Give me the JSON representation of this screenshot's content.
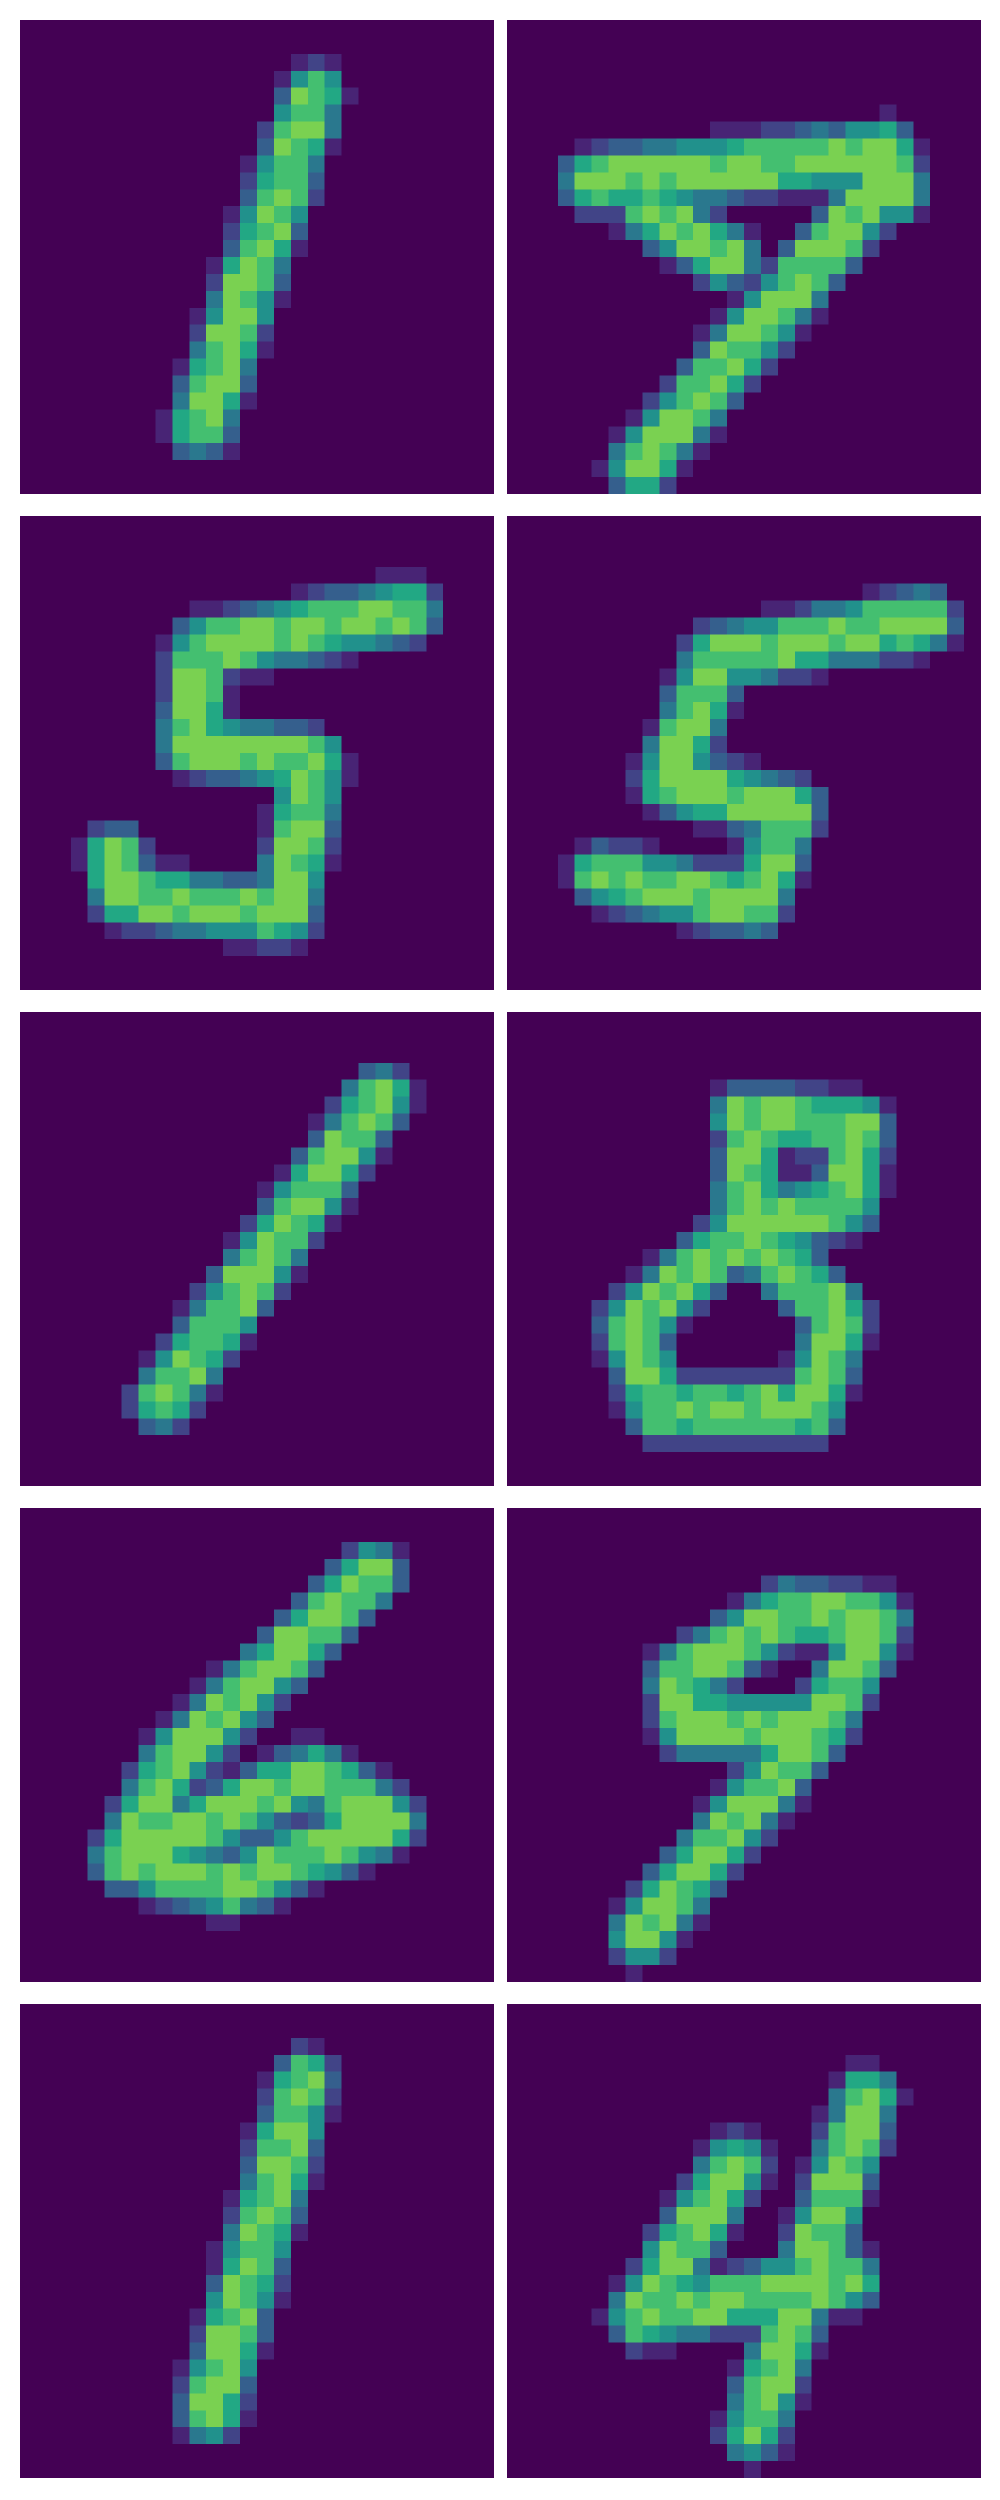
{
  "figure": {
    "background_color": "#440154",
    "colormap": [
      "#440154",
      "#482475",
      "#414487",
      "#355f8d",
      "#2a788e",
      "#21918c",
      "#22a884",
      "#44bf70",
      "#7ad151"
    ],
    "tiles": [
      {
        "row": 0,
        "col": 0,
        "digit_shape": "1",
        "strokes": [
          [
            0.62,
            0.16,
            0.38,
            0.86
          ]
        ]
      },
      {
        "row": 0,
        "col": 1,
        "digit_shape": "7",
        "strokes": [
          [
            0.18,
            0.34,
            0.8,
            0.28
          ],
          [
            0.8,
            0.28,
            0.82,
            0.36
          ],
          [
            0.78,
            0.36,
            0.28,
            0.94
          ],
          [
            0.3,
            0.4,
            0.46,
            0.5
          ]
        ]
      },
      {
        "row": 1,
        "col": 0,
        "digit_shape": "5",
        "strokes": [
          [
            0.38,
            0.28,
            0.82,
            0.2
          ],
          [
            0.38,
            0.28,
            0.36,
            0.48
          ],
          [
            0.36,
            0.48,
            0.62,
            0.52
          ],
          [
            0.62,
            0.52,
            0.56,
            0.84
          ],
          [
            0.56,
            0.84,
            0.22,
            0.8
          ],
          [
            0.22,
            0.8,
            0.2,
            0.72
          ]
        ]
      },
      {
        "row": 1,
        "col": 1,
        "digit_shape": "5",
        "strokes": [
          [
            0.44,
            0.3,
            0.88,
            0.22
          ],
          [
            0.44,
            0.3,
            0.34,
            0.56
          ],
          [
            0.34,
            0.56,
            0.6,
            0.62
          ],
          [
            0.6,
            0.62,
            0.52,
            0.82
          ],
          [
            0.52,
            0.82,
            0.2,
            0.76
          ]
        ]
      },
      {
        "row": 2,
        "col": 0,
        "digit_shape": "1",
        "strokes": [
          [
            0.76,
            0.18,
            0.3,
            0.82
          ]
        ]
      },
      {
        "row": 2,
        "col": 1,
        "digit_shape": "8",
        "strokes": [
          [
            0.5,
            0.22,
            0.74,
            0.24
          ],
          [
            0.74,
            0.24,
            0.72,
            0.4
          ],
          [
            0.72,
            0.4,
            0.5,
            0.46
          ],
          [
            0.5,
            0.46,
            0.52,
            0.22
          ],
          [
            0.5,
            0.46,
            0.26,
            0.66
          ],
          [
            0.26,
            0.66,
            0.32,
            0.84
          ],
          [
            0.32,
            0.84,
            0.64,
            0.84
          ],
          [
            0.64,
            0.84,
            0.7,
            0.64
          ],
          [
            0.7,
            0.64,
            0.5,
            0.46
          ]
        ]
      },
      {
        "row": 3,
        "col": 0,
        "digit_shape": "6",
        "strokes": [
          [
            0.74,
            0.14,
            0.32,
            0.54
          ],
          [
            0.32,
            0.54,
            0.22,
            0.74
          ],
          [
            0.22,
            0.74,
            0.44,
            0.8
          ],
          [
            0.44,
            0.8,
            0.78,
            0.66
          ],
          [
            0.78,
            0.66,
            0.62,
            0.56
          ],
          [
            0.62,
            0.56,
            0.32,
            0.7
          ]
        ]
      },
      {
        "row": 3,
        "col": 1,
        "digit_shape": "9",
        "strokes": [
          [
            0.36,
            0.36,
            0.6,
            0.22
          ],
          [
            0.6,
            0.22,
            0.78,
            0.24
          ],
          [
            0.78,
            0.24,
            0.66,
            0.46
          ],
          [
            0.66,
            0.46,
            0.38,
            0.46
          ],
          [
            0.38,
            0.46,
            0.36,
            0.36
          ],
          [
            0.66,
            0.46,
            0.28,
            0.9
          ]
        ]
      },
      {
        "row": 4,
        "col": 0,
        "digit_shape": "1",
        "strokes": [
          [
            0.6,
            0.16,
            0.4,
            0.86
          ]
        ]
      },
      {
        "row": 4,
        "col": 1,
        "digit_shape": "4",
        "strokes": [
          [
            0.48,
            0.34,
            0.28,
            0.66
          ],
          [
            0.28,
            0.66,
            0.72,
            0.58
          ],
          [
            0.76,
            0.2,
            0.52,
            0.9
          ]
        ]
      }
    ]
  }
}
